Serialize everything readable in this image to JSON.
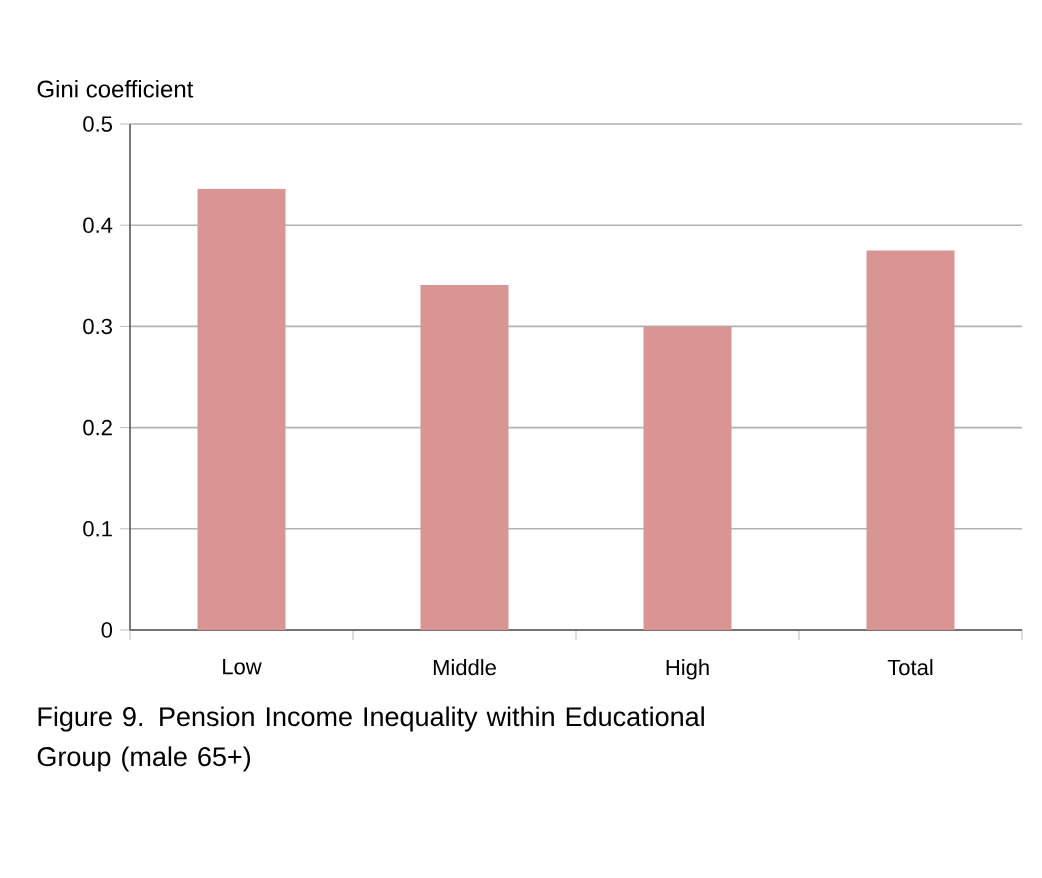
{
  "chart_data": {
    "type": "bar",
    "title": "Figure 9. Pension Income Inequality within Educational Group (male 65+)",
    "ylabel": "Gini coefficient",
    "categories": [
      "Low",
      "Middle",
      "High",
      "Total"
    ],
    "values": [
      0.436,
      0.341,
      0.3,
      0.375
    ],
    "color": "#d99594",
    "ylim": [
      0,
      0.5
    ],
    "yticks": [
      0,
      0.1,
      0.2,
      0.3,
      0.4,
      0.5
    ],
    "grid": "y"
  }
}
